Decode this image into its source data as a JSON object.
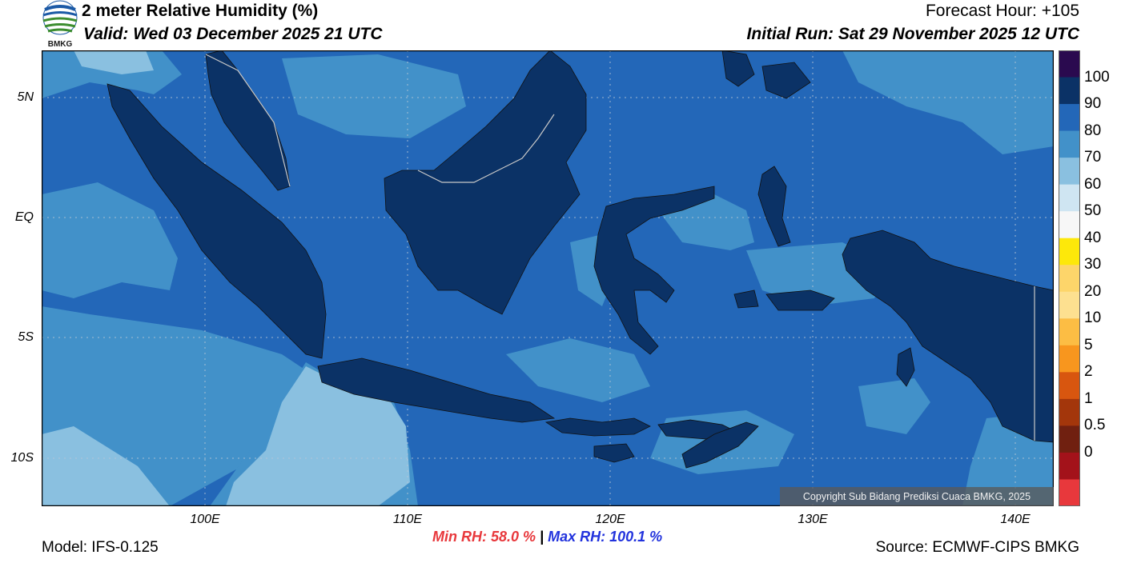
{
  "header": {
    "title": "2 meter Relative Humidity (%)",
    "valid": "Valid: Wed 03 December 2025 21 UTC",
    "forecast_hour": "Forecast Hour: +105",
    "initial_run": "Initial Run: Sat 29 November 2025 12 UTC"
  },
  "logo": {
    "text": "BMKG"
  },
  "map": {
    "lat_labels": [
      "5N",
      "EQ",
      "5S",
      "10S"
    ],
    "lon_labels": [
      "100E",
      "110E",
      "120E",
      "130E",
      "140E"
    ],
    "extent": {
      "lon_min": 92,
      "lon_max": 142,
      "lat_min": -12.2,
      "lat_max": 7.2
    },
    "colors": {
      "sea_80_90": "#2367b8",
      "sea_70_80": "#4291c9",
      "sea_60_70": "#8ac0e0",
      "land_90_100": "#0b3266",
      "border": "#c8c8c8"
    }
  },
  "colorbar": {
    "labels": [
      "100",
      "90",
      "80",
      "70",
      "60",
      "50",
      "40",
      "30",
      "20",
      "10",
      "5",
      "2",
      "1",
      "0.5",
      "0"
    ],
    "colors": [
      "#2a0a4f",
      "#0b3266",
      "#2367b8",
      "#4291c9",
      "#8ac0e0",
      "#cfe5f2",
      "#f7f7f7",
      "#fde80a",
      "#fdd56a",
      "#fde090",
      "#fcbd44",
      "#f8961e",
      "#d8560f",
      "#a3360b",
      "#702010",
      "#a3121a",
      "#e8383c"
    ]
  },
  "stats": {
    "min_rh": "Min RH:  58.0 %",
    "separator": "|",
    "max_rh": "Max RH: 100.1 %"
  },
  "footer": {
    "model": "Model: IFS-0.125",
    "source": "Source: ECMWF-CIPS BMKG",
    "copyright": "Copyright Sub Bidang Prediksi Cuaca BMKG, 2025"
  }
}
